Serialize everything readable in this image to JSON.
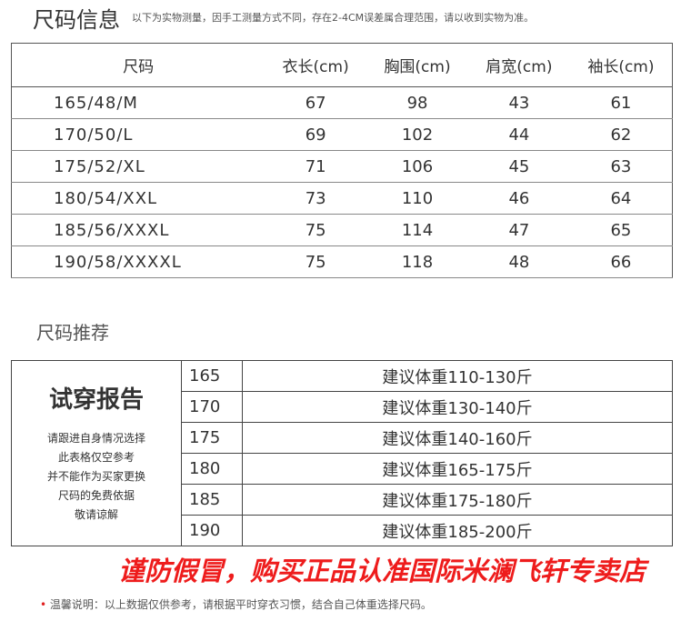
{
  "header": {
    "title": "尺码信息",
    "subtitle": "以下为实物测量，因手工测量方式不同，存在2-4CM误差属合理范围，请以收到实物为准。"
  },
  "size_table": {
    "columns": [
      "尺码",
      "衣长(cm)",
      "胸围(cm)",
      "肩宽(cm)",
      "袖长(cm)"
    ],
    "rows": [
      [
        "165/48/M",
        "67",
        "98",
        "43",
        "61"
      ],
      [
        "170/50/L",
        "69",
        "102",
        "44",
        "62"
      ],
      [
        "175/52/XL",
        "71",
        "106",
        "45",
        "63"
      ],
      [
        "180/54/XXL",
        "73",
        "110",
        "46",
        "64"
      ],
      [
        "185/56/XXXL",
        "75",
        "114",
        "47",
        "65"
      ],
      [
        "190/58/XXXXL",
        "75",
        "118",
        "48",
        "66"
      ]
    ]
  },
  "recommend": {
    "title": "尺码推荐",
    "report_title": "试穿报告",
    "report_notes": [
      "请跟进自身情况选择",
      "此表格仅空参考",
      "并不能作为买家更换",
      "尺码的免费依据",
      "敬请谅解"
    ],
    "rows": [
      [
        "165",
        "建议体重110-130斤"
      ],
      [
        "170",
        "建议体重130-140斤"
      ],
      [
        "175",
        "建议体重140-160斤"
      ],
      [
        "180",
        "建议体重165-175斤"
      ],
      [
        "185",
        "建议体重175-180斤"
      ],
      [
        "190",
        "建议体重185-200斤"
      ]
    ]
  },
  "footer": {
    "bullet": "•",
    "note": "温馨说明：以上数据仅供参考，请根据平时穿衣习惯，结合自己体重选择尺码。"
  },
  "watermark": "谨防假冒，购买正品认准国际米澜飞轩专卖店",
  "colors": {
    "watermark": "#ee1c1c"
  }
}
